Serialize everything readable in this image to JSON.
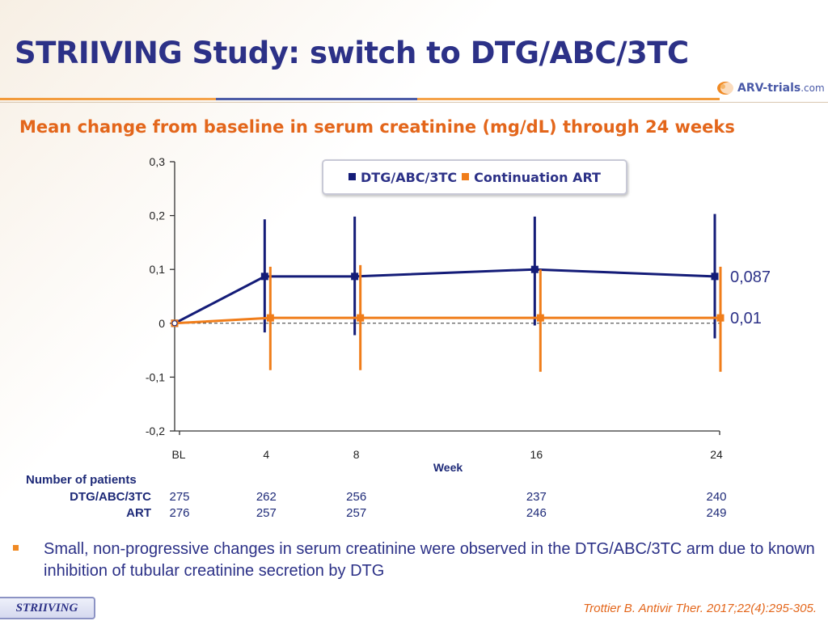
{
  "header": {
    "title": "STRIIVING Study: switch to DTG/ABC/3TC",
    "logo_text": "ARV-trials",
    "logo_text_accent": ".com",
    "subtitle": "Mean change from baseline in serum creatinine (mg/dL) through 24 weeks"
  },
  "colors": {
    "dtg": "#141c78",
    "art": "#f07d1a",
    "title": "#2c3187"
  },
  "chart_data": {
    "type": "line",
    "title": "Mean change from baseline in serum creatinine (mg/dL) through 24 weeks",
    "xlabel": "Week",
    "ylabel": "",
    "categories": [
      "BL",
      "4",
      "8",
      "16",
      "24"
    ],
    "x": [
      0,
      4,
      8,
      16,
      24
    ],
    "ylim": [
      -0.2,
      0.3
    ],
    "yticks": [
      "0,3",
      "0,2",
      "0,1",
      "0",
      "-0,1",
      "-0,2"
    ],
    "ytick_values": [
      0.3,
      0.2,
      0.1,
      0,
      -0.1,
      -0.2
    ],
    "reference_line_y": 0,
    "series": [
      {
        "name": "DTG/ABC/3TC",
        "color": "#141c78",
        "values": [
          0,
          0.087,
          0.087,
          0.1,
          0.087
        ],
        "err_low": [
          0,
          -0.017,
          -0.022,
          -0.004,
          -0.028
        ],
        "err_high": [
          0,
          0.193,
          0.198,
          0.198,
          0.203
        ],
        "end_label": "0,087"
      },
      {
        "name": "Continuation ART",
        "color": "#f07d1a",
        "values": [
          0,
          0.01,
          0.01,
          0.01,
          0.01
        ],
        "err_low": [
          0,
          -0.087,
          -0.087,
          -0.09,
          -0.09
        ],
        "err_high": [
          0,
          0.105,
          0.108,
          0.1,
          0.105
        ],
        "end_label": "0,01"
      }
    ]
  },
  "legend": {
    "dtg_label": "DTG/ABC/3TC",
    "art_label": "Continuation ART"
  },
  "patients": {
    "heading": "Number of patients",
    "dtg_label": "DTG/ABC/3TC",
    "art_label": "ART",
    "dtg_counts": [
      "275",
      "262",
      "256",
      "237",
      "240"
    ],
    "art_counts": [
      "276",
      "257",
      "257",
      "246",
      "249"
    ]
  },
  "bullet": "Small, non-progressive changes in serum creatinine were observed in the DTG/ABC/3TC arm due to known inhibition of tubular creatinine secretion by DTG",
  "footer": {
    "tab_label": "STRIIVING",
    "citation": "Trottier B. Antivir Ther. 2017;22(4):295-305."
  }
}
